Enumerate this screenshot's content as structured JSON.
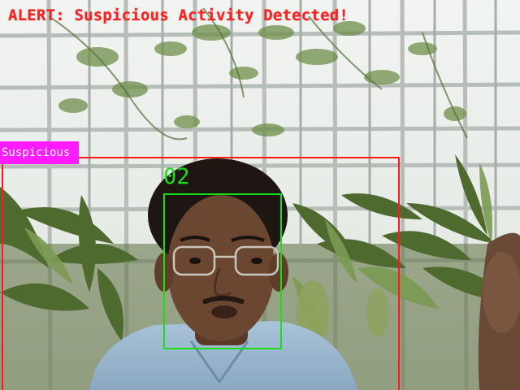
{
  "alert": {
    "text": "ALERT: Suspicious Activity Detected!",
    "color": "#ff2020"
  },
  "detections": {
    "person": {
      "label": "Suspicious",
      "box_color": "#ff1a1a",
      "label_bg": "#ff1aff"
    },
    "face": {
      "id": "02",
      "box_color": "#18e018"
    }
  },
  "scene": {
    "icons": [
      "greenhouse-background",
      "person-figure",
      "plant-foliage"
    ]
  }
}
